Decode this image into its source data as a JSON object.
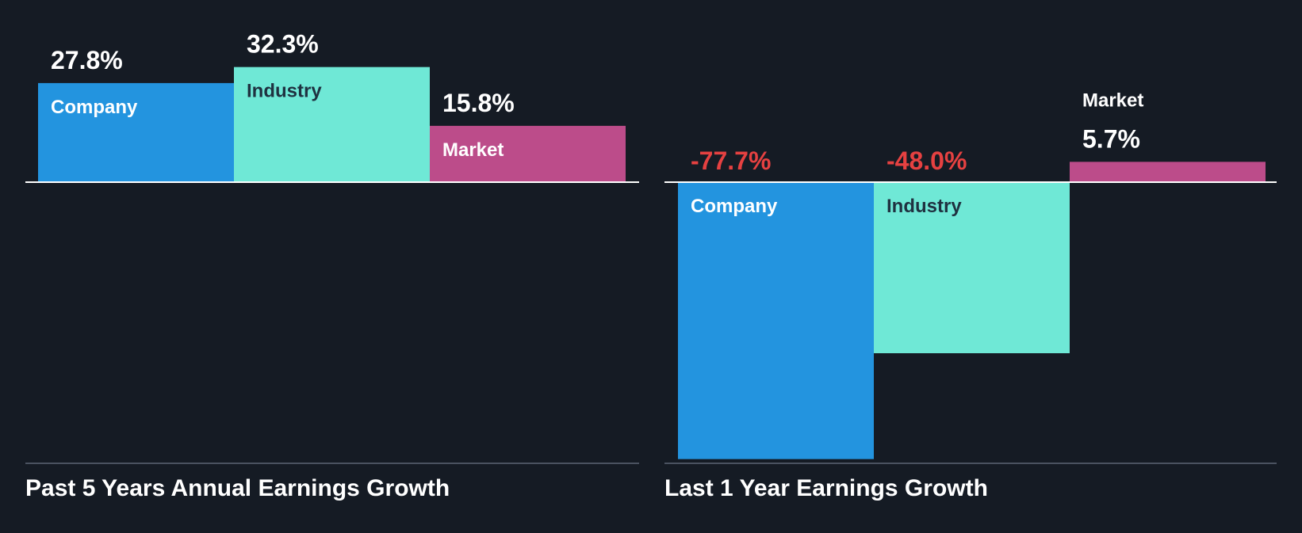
{
  "colors": {
    "background": "#151b24",
    "company": "#2394df",
    "industry": "#6fe8d6",
    "market": "#bc4c8a",
    "negative_value": "#e64141",
    "positive_value": "#ffffff",
    "axis": "#ffffff",
    "baseline": "#4a5260",
    "title": "#ffffff"
  },
  "chart_data": [
    {
      "type": "bar",
      "title": "Past 5 Years Annual Earnings Growth",
      "categories": [
        "Company",
        "Industry",
        "Market"
      ],
      "values": [
        27.8,
        32.3,
        15.8
      ],
      "value_labels": [
        "27.8%",
        "32.3%",
        "15.8%"
      ],
      "unit": "%",
      "ylim": [
        -80,
        40
      ],
      "grid": false,
      "legend": "none"
    },
    {
      "type": "bar",
      "title": "Last 1 Year Earnings Growth",
      "categories": [
        "Company",
        "Industry",
        "Market"
      ],
      "values": [
        -77.7,
        -48.0,
        5.7
      ],
      "value_labels": [
        "-77.7%",
        "-48.0%",
        "5.7%"
      ],
      "unit": "%",
      "ylim": [
        -80,
        40
      ],
      "grid": false,
      "legend": "none"
    }
  ]
}
